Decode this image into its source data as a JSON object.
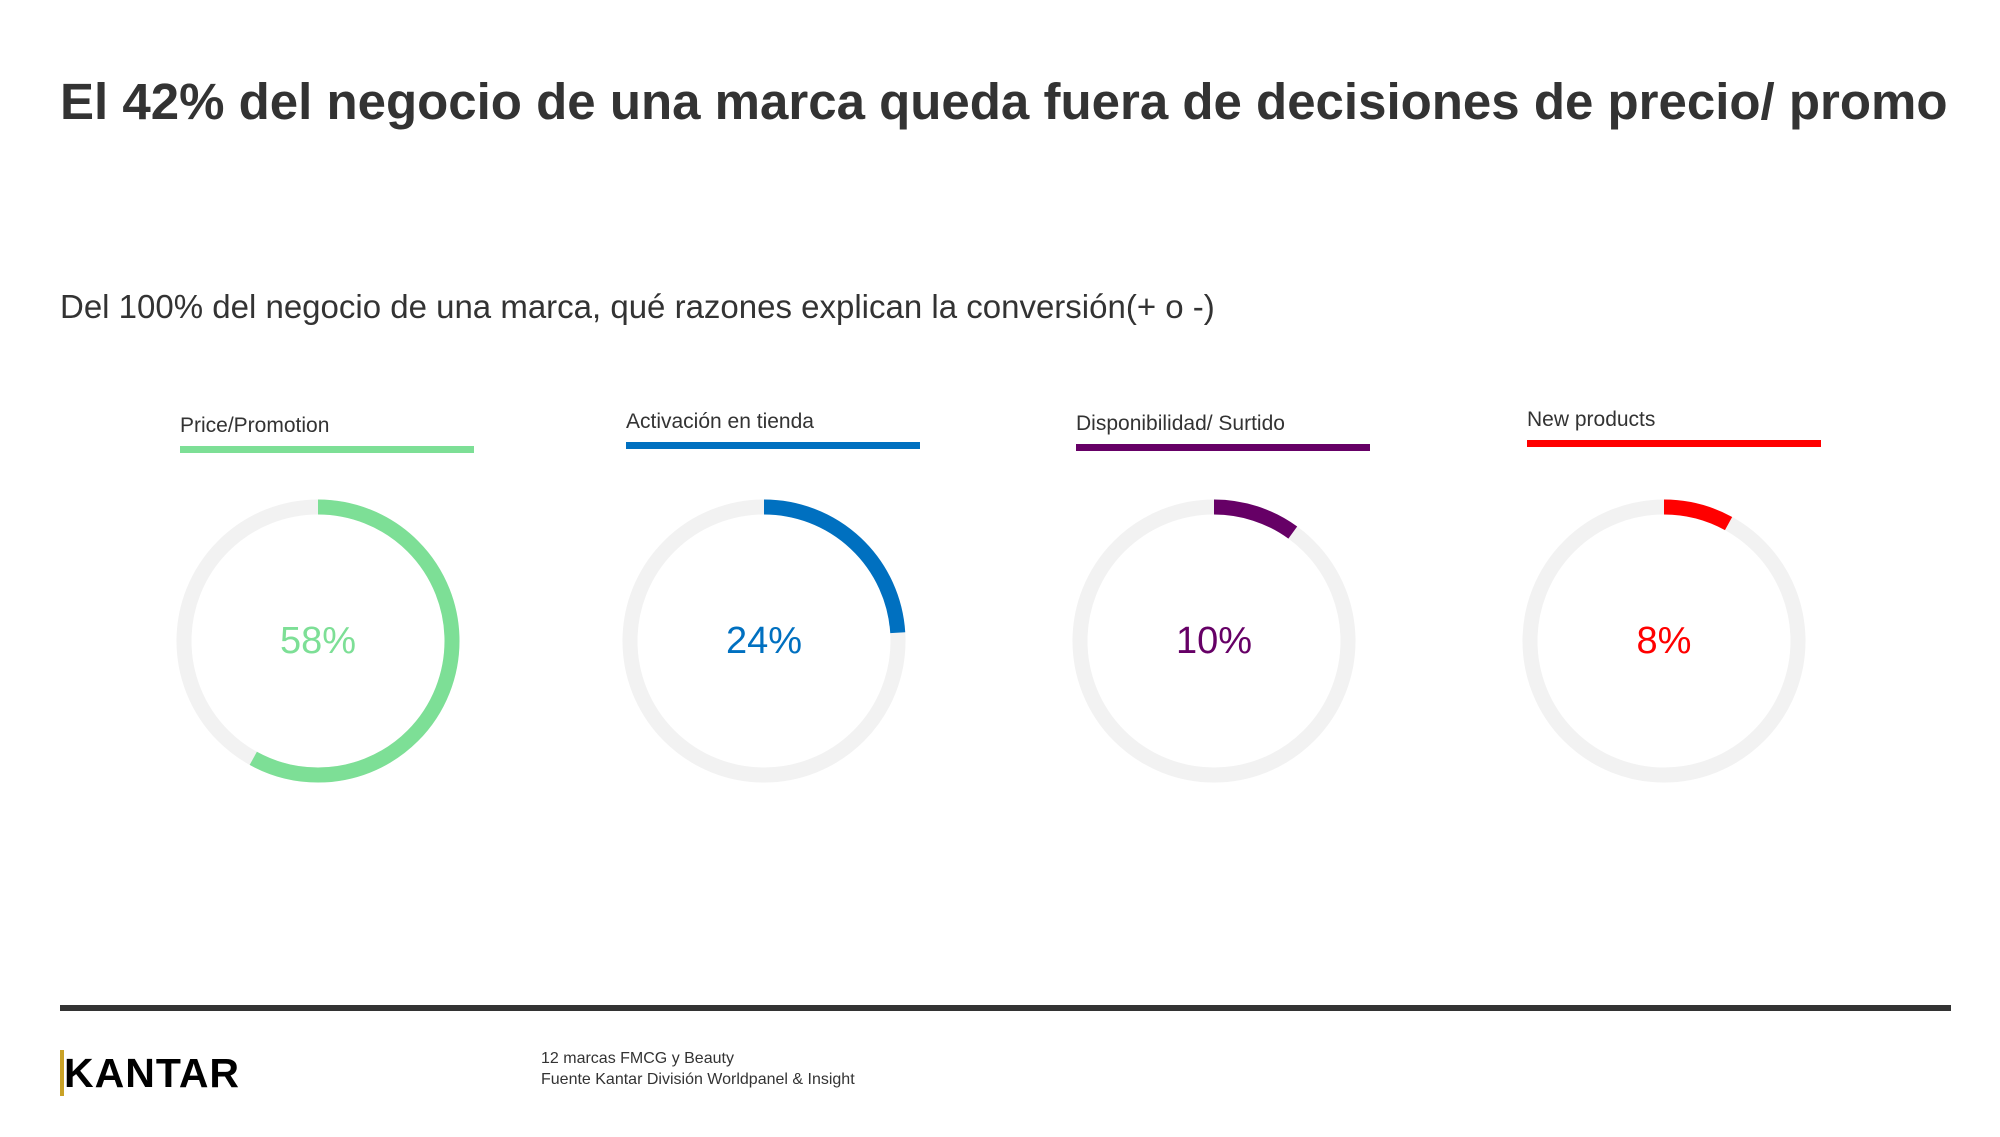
{
  "title": "El 42% del negocio de una marca queda fuera de decisiones de precio/ promo",
  "subtitle": "Del 100% del negocio de una marca, qué razones explican la conversión(+ o -)",
  "chart_data": {
    "type": "donut",
    "track_color": "#f2f2f2",
    "items": [
      {
        "label": "Price/Promotion",
        "value": 58,
        "display": "58%",
        "color": "#7ddf96"
      },
      {
        "label": "Activación en tienda",
        "value": 24,
        "display": "24%",
        "color": "#0070c0"
      },
      {
        "label": "Disponibilidad/ Surtido",
        "value": 10,
        "display": "10%",
        "color": "#660066"
      },
      {
        "label": "New products",
        "value": 8,
        "display": "8%",
        "color": "#ff0000"
      }
    ]
  },
  "footer": {
    "logo": "KANTAR",
    "note1": "12 marcas FMCG y Beauty",
    "note2": "Fuente Kantar División Worldpanel & Insight"
  }
}
